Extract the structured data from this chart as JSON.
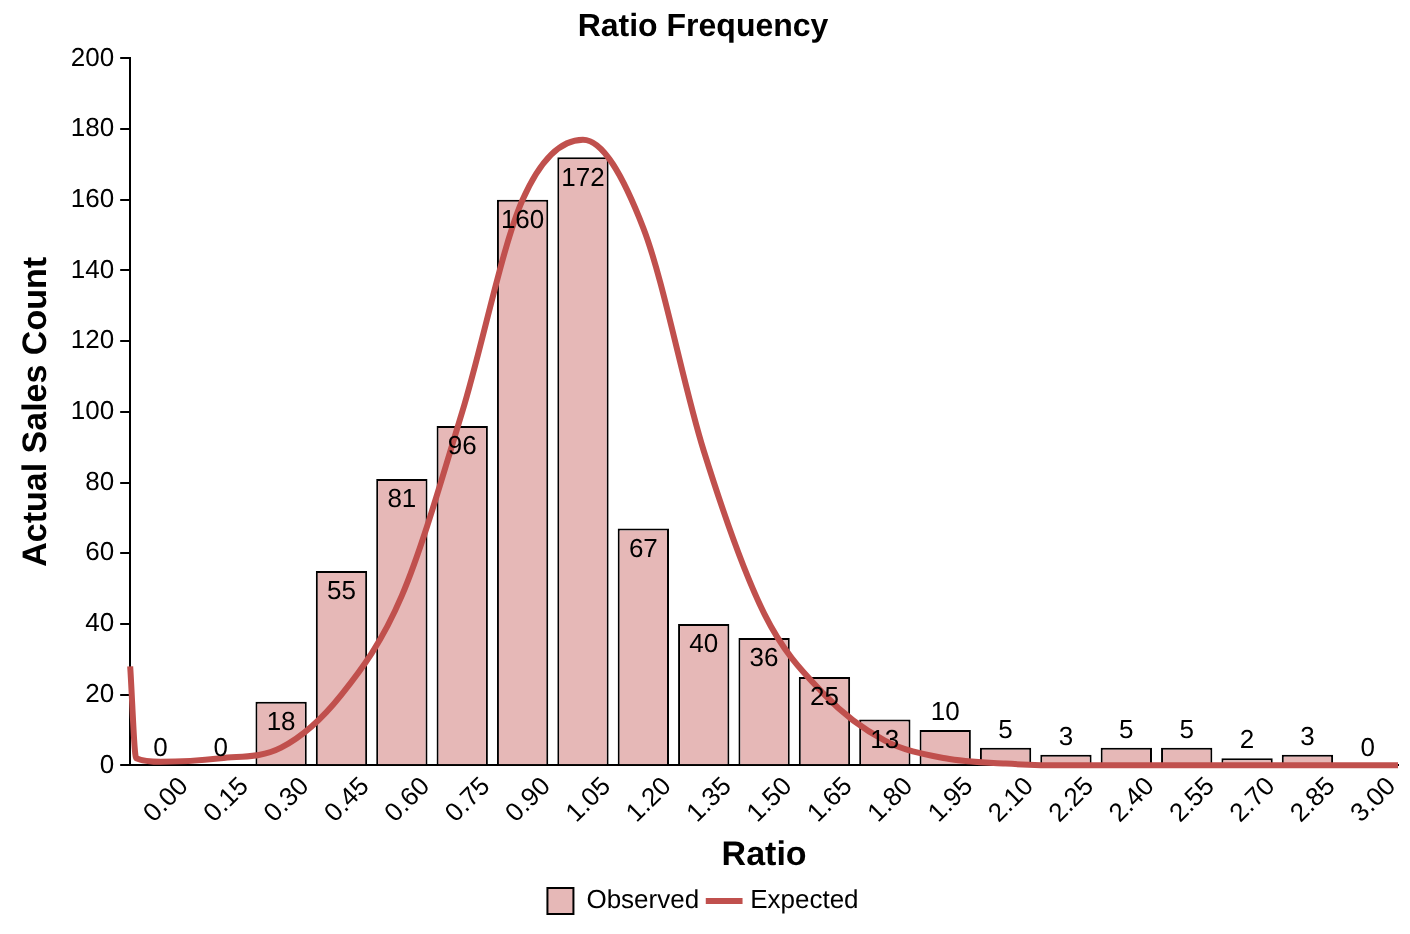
{
  "chart_data": {
    "type": "bar",
    "title": "Ratio Frequency",
    "xlabel": "Ratio",
    "ylabel": "Actual Sales Count",
    "x": [
      0,
      0.15,
      0.3,
      0.45,
      0.6,
      0.75,
      0.9,
      1.05,
      1.2,
      1.35,
      1.5,
      1.65,
      1.8,
      1.95,
      2.1,
      2.25,
      2.4,
      2.55,
      2.7,
      2.85,
      3
    ],
    "xlim": [
      -0.075,
      3.075
    ],
    "xticks": [
      {
        "value": 0,
        "label": "0.00"
      },
      {
        "value": 0.15,
        "label": "0.15"
      },
      {
        "value": 0.3,
        "label": "0.30"
      },
      {
        "value": 0.45,
        "label": "0.45"
      },
      {
        "value": 0.6,
        "label": "0.60"
      },
      {
        "value": 0.75,
        "label": "0.75"
      },
      {
        "value": 0.9,
        "label": "0.90"
      },
      {
        "value": 1.05,
        "label": "1.05"
      },
      {
        "value": 1.2,
        "label": "1.20"
      },
      {
        "value": 1.35,
        "label": "1.35"
      },
      {
        "value": 1.5,
        "label": "1.50"
      },
      {
        "value": 1.65,
        "label": "1.65"
      },
      {
        "value": 1.8,
        "label": "1.80"
      },
      {
        "value": 1.95,
        "label": "1.95"
      },
      {
        "value": 2.1,
        "label": "2.10"
      },
      {
        "value": 2.25,
        "label": "2.25"
      },
      {
        "value": 2.4,
        "label": "2.40"
      },
      {
        "value": 2.55,
        "label": "2.55"
      },
      {
        "value": 2.7,
        "label": "2.70"
      },
      {
        "value": 2.85,
        "label": "2.85"
      },
      {
        "value": 3,
        "label": "3.00"
      }
    ],
    "ylim": [
      0,
      200
    ],
    "yticks": [
      0,
      20,
      40,
      60,
      80,
      100,
      120,
      140,
      160,
      180,
      200
    ],
    "grid": false,
    "legend": "bottom",
    "series": [
      {
        "name": "Observed",
        "color": "#e6b8b7",
        "values": [
          0,
          0,
          18,
          55,
          81,
          96,
          160,
          172,
          67,
          40,
          36,
          25,
          13,
          10,
          5,
          3,
          5,
          5,
          2,
          3,
          0
        ],
        "value_labels": [
          "0",
          "0",
          "18",
          "55",
          "81",
          "96",
          "160",
          "172",
          "67",
          "40",
          "36",
          "25",
          "13",
          "10",
          "5",
          "3",
          "5",
          "5",
          "2",
          "3",
          "0"
        ]
      },
      {
        "name": "Expected",
        "type": "line",
        "color": "#c0504d",
        "x": [
          -0.075,
          -0.06,
          0,
          0.15,
          0.3,
          0.45,
          0.6,
          0.75,
          0.9,
          1.05,
          1.2,
          1.35,
          1.5,
          1.65,
          1.8,
          1.95,
          2.1,
          2.25,
          2.4,
          3.075
        ],
        "values": [
          28,
          2,
          1,
          2,
          5,
          20,
          48,
          100,
          160,
          177,
          152,
          89,
          43,
          20,
          7,
          2,
          0.5,
          0,
          0,
          0
        ]
      }
    ]
  }
}
